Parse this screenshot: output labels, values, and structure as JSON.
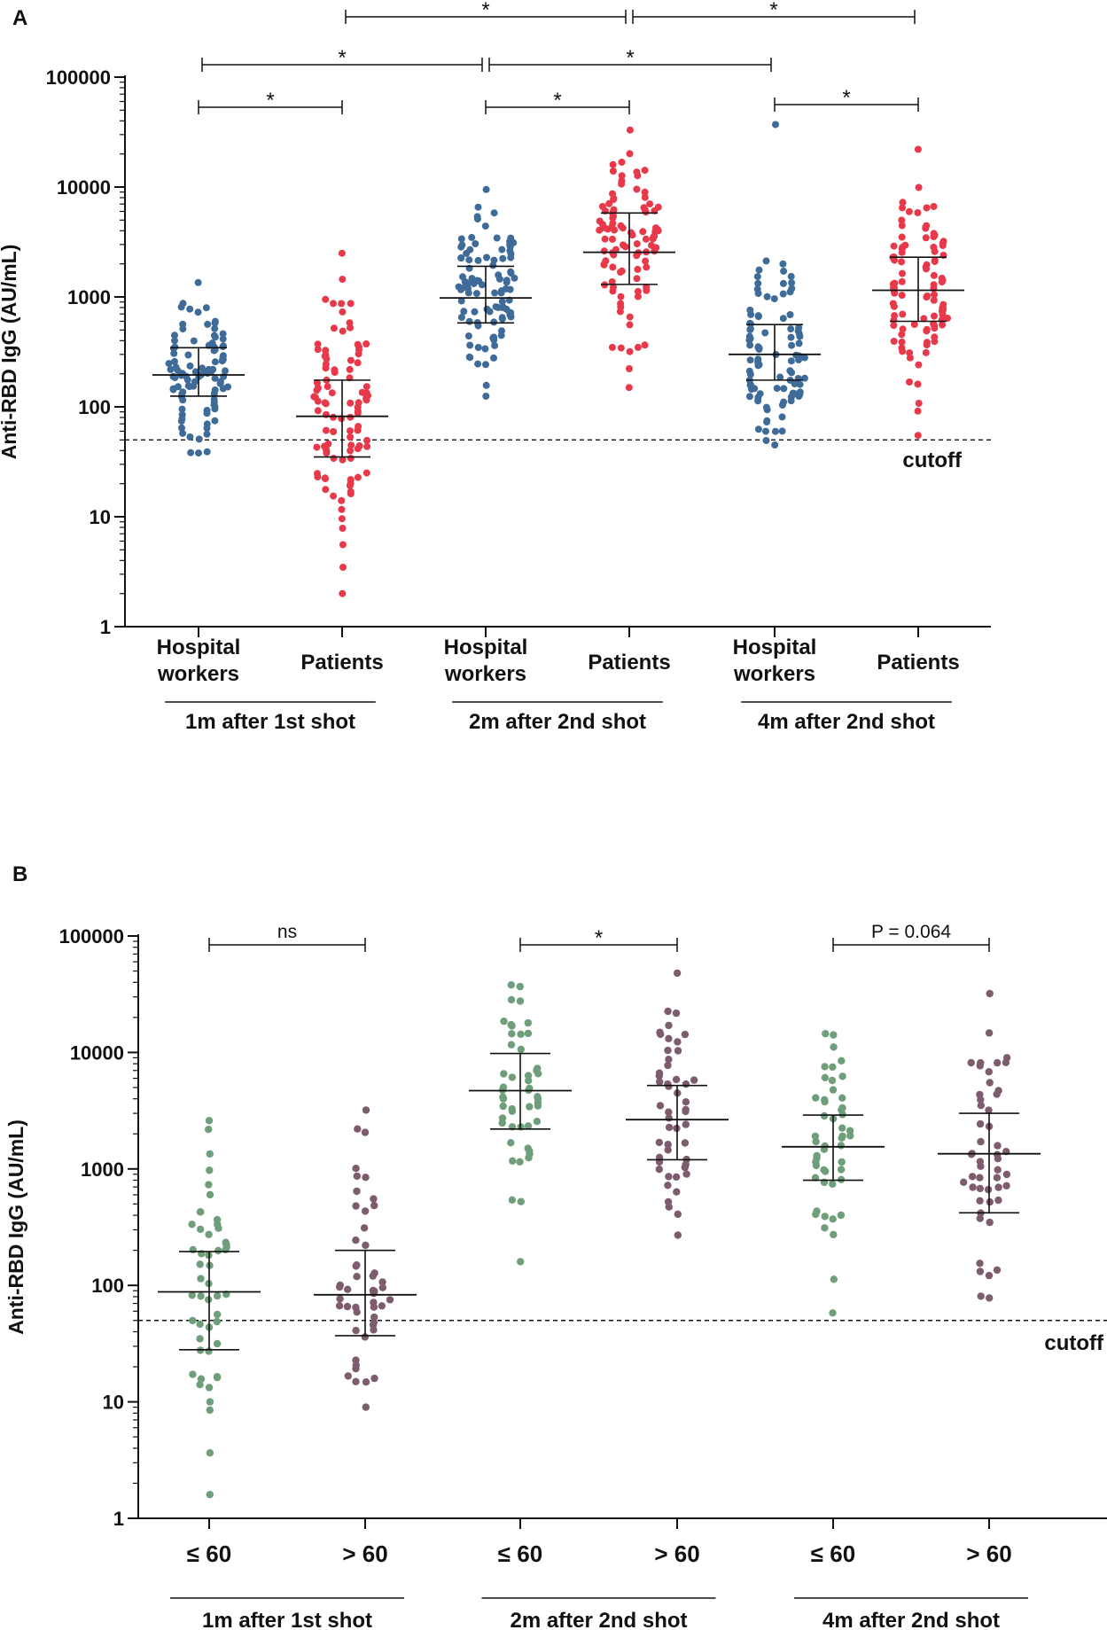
{
  "chart_data": [
    {
      "panel": "A",
      "type": "scatter",
      "subtype": "dot plot (median with interquartile range)",
      "yscale": "log",
      "ylabel": "Anti-RBD IgG (AU/mL)",
      "ylim": [
        1,
        100000
      ],
      "yticks": [
        "1",
        "10",
        "100",
        "1000",
        "10000",
        "100000"
      ],
      "cutoff": {
        "value": 50,
        "label": "cutoff"
      },
      "groups": [
        {
          "label": "Hospital workers",
          "period": "1m after 1st shot",
          "color": "#3f6b99",
          "n": 100,
          "min": 38,
          "q1": 125,
          "median": 195,
          "q3": 345,
          "max": 1350
        },
        {
          "label": "Patients",
          "period": "1m after 1st shot",
          "color": "#e8394a",
          "n": 100,
          "min": 2,
          "q1": 35,
          "median": 82,
          "q3": 175,
          "max": 2500
        },
        {
          "label": "Hospital workers",
          "period": "2m after 2nd shot",
          "color": "#3f6b99",
          "n": 100,
          "min": 125,
          "q1": 580,
          "median": 980,
          "q3": 1900,
          "max": 9500
        },
        {
          "label": "Patients",
          "period": "2m after 2nd shot",
          "color": "#e8394a",
          "n": 100,
          "min": 150,
          "q1": 1300,
          "median": 2550,
          "q3": 5800,
          "max": 33000
        },
        {
          "label": "Hospital workers",
          "period": "4m after 2nd shot",
          "color": "#3f6b99",
          "n": 100,
          "min": 45,
          "q1": 175,
          "median": 300,
          "q3": 560,
          "max": 37000
        },
        {
          "label": "Patients",
          "period": "4m after 2nd shot",
          "color": "#e8394a",
          "n": 100,
          "min": 55,
          "q1": 600,
          "median": 1150,
          "q3": 2300,
          "max": 22000
        }
      ],
      "period_labels": [
        "1m after 1st shot",
        "2m after 2nd shot",
        "4m after 2nd shot"
      ],
      "comparisons": [
        {
          "from": 0,
          "to": 1,
          "label": "*"
        },
        {
          "from": 2,
          "to": 3,
          "label": "*"
        },
        {
          "from": 4,
          "to": 5,
          "label": "*"
        },
        {
          "from": 0,
          "to": 2,
          "label": "*"
        },
        {
          "from": 2,
          "to": 4,
          "label": "*"
        },
        {
          "from": 1,
          "to": 3,
          "label": "*"
        },
        {
          "from": 3,
          "to": 5,
          "label": "*"
        }
      ]
    },
    {
      "panel": "B",
      "type": "scatter",
      "subtype": "dot plot (median with interquartile range)",
      "yscale": "log",
      "ylabel": "Anti-RBD IgG (AU/mL)",
      "ylim": [
        1,
        100000
      ],
      "yticks": [
        "1",
        "10",
        "100",
        "1000",
        "10000",
        "100000"
      ],
      "cutoff": {
        "value": 50,
        "label": "cutoff"
      },
      "groups": [
        {
          "label": "≤ 60",
          "period": "1m after 1st shot",
          "color": "#6e9e7a",
          "n": 50,
          "min": 1.6,
          "q1": 28,
          "median": 88,
          "q3": 195,
          "max": 2600
        },
        {
          "label": "> 60",
          "period": "1m after 1st shot",
          "color": "#7d5c6e",
          "n": 50,
          "min": 9,
          "q1": 37,
          "median": 83,
          "q3": 200,
          "max": 3200
        },
        {
          "label": "≤ 60",
          "period": "2m after 2nd shot",
          "color": "#6e9e7a",
          "n": 50,
          "min": 160,
          "q1": 2200,
          "median": 4700,
          "q3": 9800,
          "max": 38000
        },
        {
          "label": "> 60",
          "period": "2m after 2nd shot",
          "color": "#7d5c6e",
          "n": 50,
          "min": 270,
          "q1": 1200,
          "median": 2650,
          "q3": 5200,
          "max": 48000
        },
        {
          "label": "≤ 60",
          "period": "4m after 2nd shot",
          "color": "#6e9e7a",
          "n": 50,
          "min": 58,
          "q1": 800,
          "median": 1550,
          "q3": 2900,
          "max": 14500
        },
        {
          "label": "> 60",
          "period": "4m after 2nd shot",
          "color": "#7d5c6e",
          "n": 50,
          "min": 78,
          "q1": 420,
          "median": 1350,
          "q3": 3000,
          "max": 32000
        }
      ],
      "period_labels": [
        "1m after 1st shot",
        "2m after 2nd shot",
        "4m after 2nd shot"
      ],
      "comparisons": [
        {
          "from": 0,
          "to": 1,
          "label": "ns"
        },
        {
          "from": 2,
          "to": 3,
          "label": "*"
        },
        {
          "from": 4,
          "to": 5,
          "label": "P = 0.064"
        }
      ]
    }
  ]
}
